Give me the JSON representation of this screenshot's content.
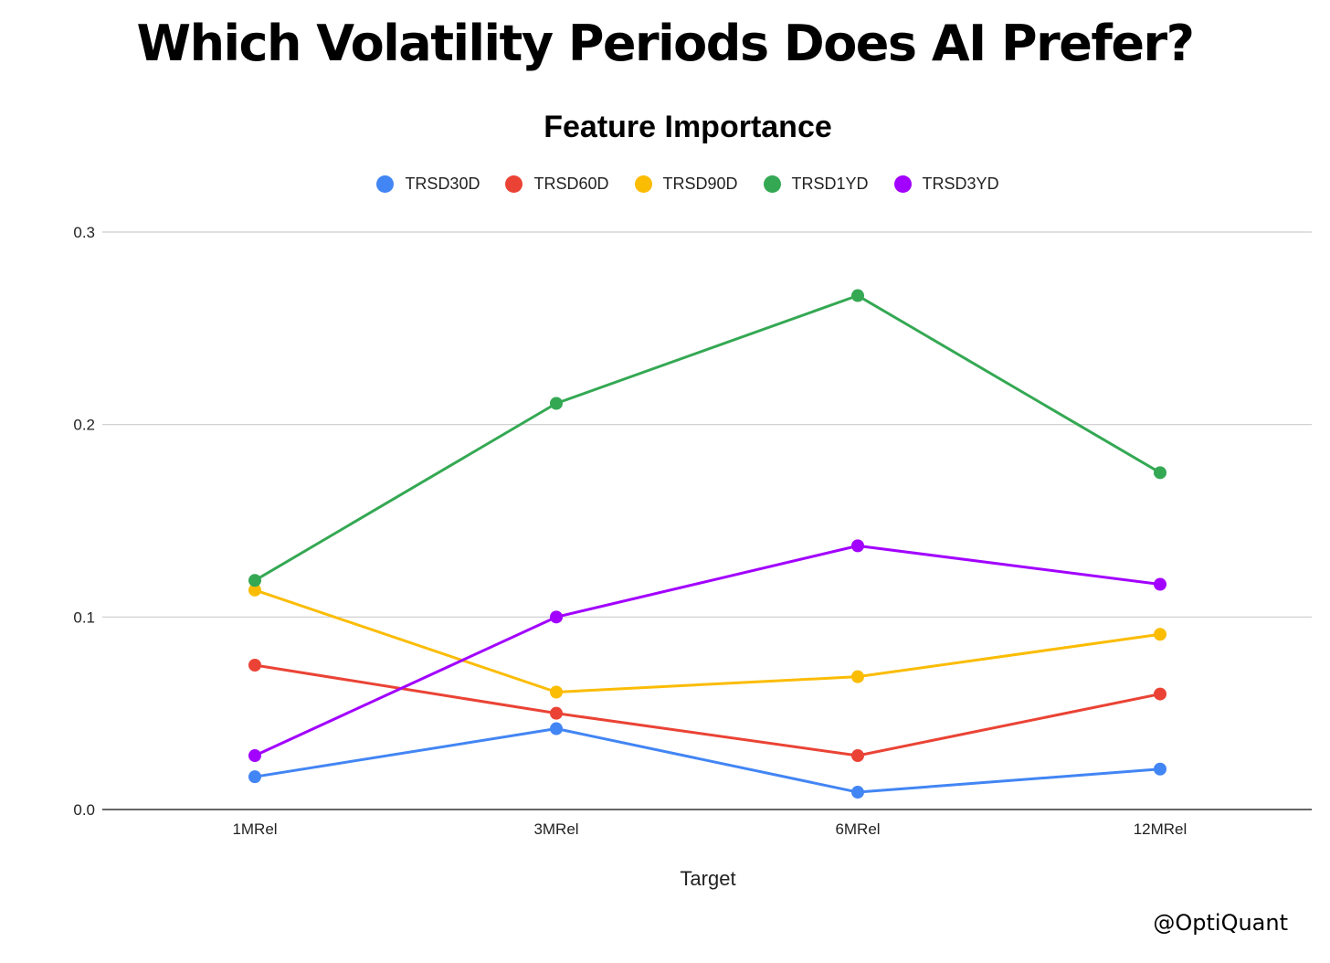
{
  "page": {
    "main_title": "Which Volatility Periods Does AI Prefer?",
    "watermark": "@OptiQuant"
  },
  "chart_data": {
    "type": "line",
    "title": "Feature Importance",
    "xlabel": "Target",
    "ylabel": "",
    "categories": [
      "1MRel",
      "3MRel",
      "6MRel",
      "12MRel"
    ],
    "ylim": [
      0,
      0.3
    ],
    "yticks": [
      0.0,
      0.1,
      0.2,
      0.3
    ],
    "ytick_labels": [
      "0.0",
      "0.1",
      "0.2",
      "0.3"
    ],
    "grid": true,
    "legend_position": "top-center",
    "series": [
      {
        "name": "TRSD30D",
        "color": "#4285F4",
        "values": [
          0.017,
          0.042,
          0.009,
          0.021
        ]
      },
      {
        "name": "TRSD60D",
        "color": "#EA4335",
        "values": [
          0.075,
          0.05,
          0.028,
          0.06
        ]
      },
      {
        "name": "TRSD90D",
        "color": "#FBBC04",
        "values": [
          0.114,
          0.061,
          0.069,
          0.091
        ]
      },
      {
        "name": "TRSD1YD",
        "color": "#34A853",
        "values": [
          0.119,
          0.211,
          0.267,
          0.175
        ]
      },
      {
        "name": "TRSD3YD",
        "color": "#A200FF",
        "values": [
          0.028,
          0.1,
          0.137,
          0.117
        ]
      }
    ]
  }
}
